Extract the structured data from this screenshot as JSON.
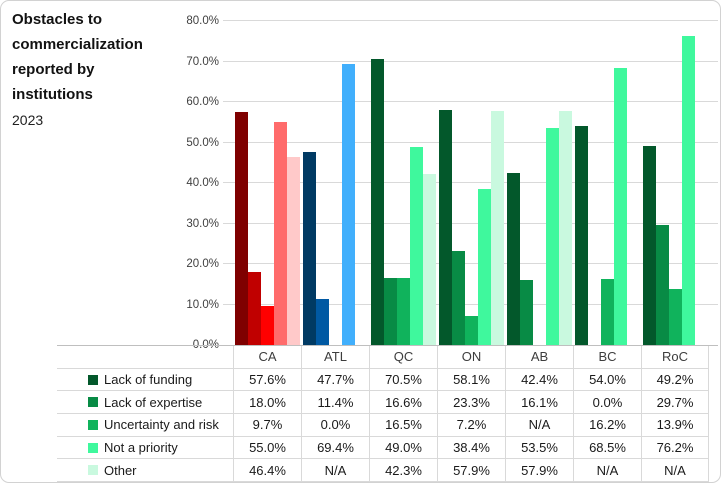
{
  "title": {
    "text": "Obstacles to commercialization reported by institutions",
    "year": "2023"
  },
  "chart_data": {
    "type": "bar",
    "title": "Obstacles to commercialization reported by institutions",
    "subtitle": "2023",
    "categories": [
      "CA",
      "ATL",
      "QC",
      "ON",
      "AB",
      "BC",
      "RoC"
    ],
    "series": [
      {
        "name": "Lack of funding",
        "values": [
          57.6,
          47.7,
          70.5,
          58.1,
          42.4,
          54.0,
          49.2
        ]
      },
      {
        "name": "Lack of expertise",
        "values": [
          18.0,
          11.4,
          16.6,
          23.3,
          16.1,
          0.0,
          29.7
        ]
      },
      {
        "name": "Uncertainty and risk",
        "values": [
          9.7,
          0.0,
          16.5,
          7.2,
          null,
          16.2,
          13.9
        ]
      },
      {
        "name": "Not a priority",
        "values": [
          55.0,
          69.4,
          49.0,
          38.4,
          53.5,
          68.5,
          76.2
        ]
      },
      {
        "name": "Other",
        "values": [
          46.4,
          null,
          42.3,
          57.9,
          57.9,
          null,
          null
        ]
      }
    ],
    "value_suffix": "%",
    "na_label": "N/A",
    "ylim": [
      0,
      80
    ],
    "ytick_step": 10,
    "ytick_labels": [
      "0.0%",
      "10.0%",
      "20.0%",
      "30.0%",
      "40.0%",
      "50.0%",
      "60.0%",
      "70.0%",
      "80.0%"
    ],
    "grid": "horizontal",
    "legend_position": "left-of-table-rows",
    "colors": {
      "gridline": "#d9d9d9",
      "axis_line": "#bfbfbf",
      "group_palettes": [
        [
          "#7f0000",
          "#c00000",
          "#ff0000",
          "#ff6b6b",
          "#ffc9c9"
        ],
        [
          "#003a63",
          "#0059a3",
          "#1e8fe0",
          "#41affc",
          "#c6e7fb"
        ],
        [
          "#03582b",
          "#088b45",
          "#10b35c",
          "#3ff89d",
          "#c9f9df"
        ],
        [
          "#03582b",
          "#088b45",
          "#10b35c",
          "#3ff89d",
          "#c9f9df"
        ],
        [
          "#03582b",
          "#088b45",
          "#10b35c",
          "#3ff89d",
          "#c9f9df"
        ],
        [
          "#03582b",
          "#088b45",
          "#10b35c",
          "#3ff89d",
          "#c9f9df"
        ],
        [
          "#03582b",
          "#088b45",
          "#10b35c",
          "#3ff89d",
          "#c9f9df"
        ]
      ],
      "legend_swatches": [
        "#03582b",
        "#088b45",
        "#10b35c",
        "#3ff89d",
        "#c9f9df"
      ]
    }
  }
}
